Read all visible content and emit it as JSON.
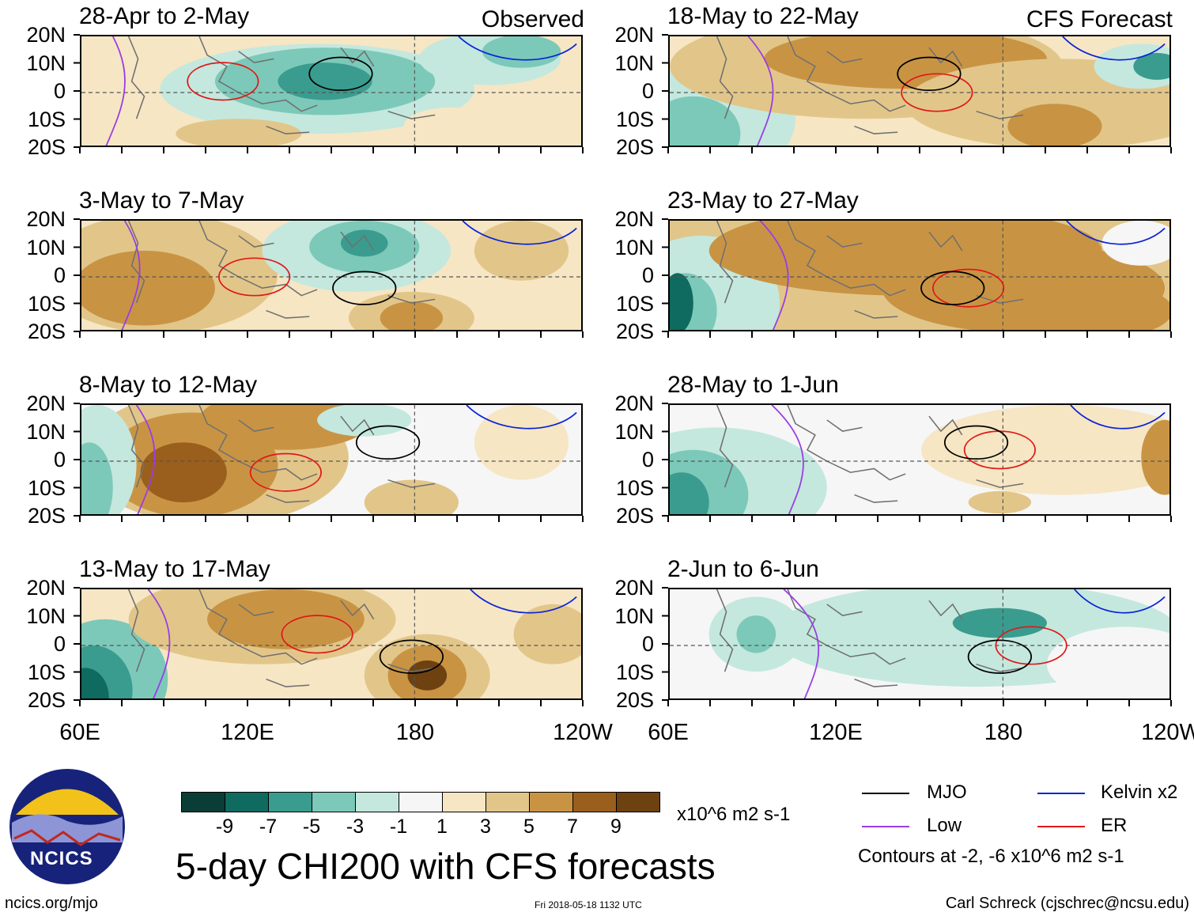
{
  "chart_data": {
    "type": "heatmap",
    "title": "5-day CHI200 with CFS forecasts",
    "units": "x10^6 m2 s-1",
    "lat_ticks": [
      "20N",
      "10N",
      "0",
      "10S",
      "20S"
    ],
    "lon_ticks": [
      "60E",
      "120E",
      "180",
      "120W"
    ],
    "colorbar": {
      "colors": [
        "#0a3d35",
        "#0f6a5f",
        "#3a9c8e",
        "#7cc9b9",
        "#c4e8de",
        "#f6f6f6",
        "#f6e6c4",
        "#e2c689",
        "#c89444",
        "#9a5f1c",
        "#6e4111"
      ],
      "labels": [
        "-9",
        "-7",
        "-5",
        "-3",
        "-1",
        "1",
        "3",
        "5",
        "7",
        "9"
      ]
    },
    "panels": [
      {
        "title": "28-Apr to 2-May",
        "tag": "Observed",
        "column": "observed"
      },
      {
        "title": "3-May to 7-May",
        "tag": "",
        "column": "observed"
      },
      {
        "title": "8-May to 12-May",
        "tag": "",
        "column": "observed"
      },
      {
        "title": "13-May to 17-May",
        "tag": "",
        "column": "observed"
      },
      {
        "title": "18-May to 22-May",
        "tag": "CFS Forecast",
        "column": "forecast"
      },
      {
        "title": "23-May to 27-May",
        "tag": "",
        "column": "forecast"
      },
      {
        "title": "28-May to 1-Jun",
        "tag": "",
        "column": "forecast"
      },
      {
        "title": "2-Jun to 6-Jun",
        "tag": "",
        "column": "forecast"
      }
    ]
  },
  "legend": {
    "items": [
      {
        "label": "MJO",
        "color": "#000000"
      },
      {
        "label": "Kelvin x2",
        "color": "#0a24d8"
      },
      {
        "label": "Low",
        "color": "#9a3de6"
      },
      {
        "label": "ER",
        "color": "#e01818"
      }
    ],
    "note": "Contours at -2, -6 x10^6 m2 s-1"
  },
  "logo": {
    "text": "NCICS"
  },
  "footer": {
    "left": "ncics.org/mjo",
    "center": "Fri 2018-05-18 1132 UTC",
    "right": "Carl Schreck (cjschrec@ncsu.edu)"
  }
}
